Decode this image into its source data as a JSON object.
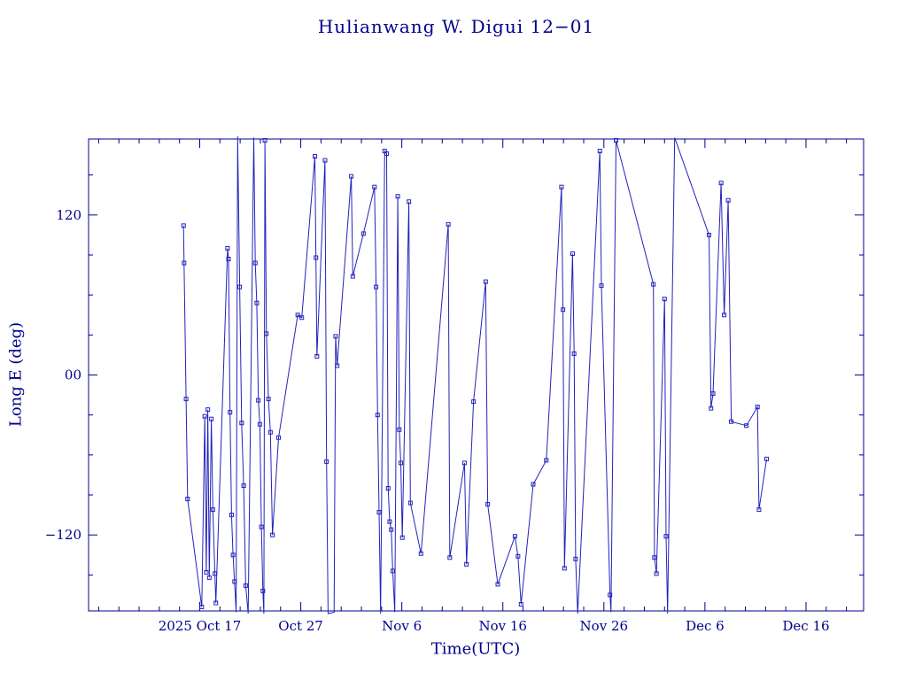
{
  "colors": {
    "background": "#ffffff",
    "text": "#00008B",
    "frame": "#00008B",
    "data": "#2222BB"
  },
  "chart_data": {
    "type": "line",
    "title": "Hulianwang W. Digui 12−01",
    "xlabel": "Time(UTC)",
    "ylabel": "Long E (deg)",
    "legend": "none",
    "grid": false,
    "marker": "open-square",
    "x_axis": {
      "unit": "days relative to 2025 Oct 17 00:00 UTC",
      "range": [
        -11,
        65.7
      ],
      "major_ticks": [
        {
          "day": 0,
          "label": "2025 Oct 17"
        },
        {
          "day": 10,
          "label": "Oct 27"
        },
        {
          "day": 20,
          "label": "Nov 6"
        },
        {
          "day": 30,
          "label": "Nov 16"
        },
        {
          "day": 40,
          "label": "Nov 26"
        },
        {
          "day": 50,
          "label": "Dec 6"
        },
        {
          "day": 60,
          "label": "Dec 16"
        }
      ],
      "minor_tick_step": 2
    },
    "y_axis": {
      "unit": "degrees East longitude",
      "range": [
        -177,
        177
      ],
      "major_ticks": [
        {
          "value": 120,
          "label": "120"
        },
        {
          "value": 0,
          "label": "00"
        },
        {
          "value": -120,
          "label": "−120"
        }
      ],
      "minor_tick_step": 30
    },
    "series": [
      {
        "name": "longitude-track",
        "points": [
          [
            -1.6,
            112
          ],
          [
            -1.55,
            84
          ],
          [
            -1.35,
            -18
          ],
          [
            -1.2,
            -93
          ],
          [
            0.2,
            -174
          ],
          [
            0.5,
            -31
          ],
          [
            0.65,
            -148
          ],
          [
            0.8,
            -26
          ],
          [
            0.95,
            -152
          ],
          [
            1.15,
            -33
          ],
          [
            1.3,
            -101
          ],
          [
            1.5,
            -149
          ],
          [
            1.6,
            -171
          ],
          [
            2.75,
            95
          ],
          [
            2.85,
            87
          ],
          [
            3.0,
            -28
          ],
          [
            3.15,
            -105
          ],
          [
            3.3,
            -135
          ],
          [
            3.45,
            -155
          ],
          [
            3.6,
            -178
          ],
          [
            3.75,
            179
          ],
          [
            3.95,
            66
          ],
          [
            4.15,
            -36
          ],
          [
            4.35,
            -83
          ],
          [
            4.55,
            -158
          ],
          [
            4.8,
            -179
          ],
          [
            5.35,
            178
          ],
          [
            5.5,
            84
          ],
          [
            5.65,
            54
          ],
          [
            5.8,
            -19
          ],
          [
            5.95,
            -37
          ],
          [
            6.1,
            -114
          ],
          [
            6.25,
            -162
          ],
          [
            6.35,
            -179
          ],
          [
            6.45,
            176
          ],
          [
            6.6,
            31
          ],
          [
            6.8,
            -18
          ],
          [
            7.0,
            -43
          ],
          [
            7.2,
            -120
          ],
          [
            7.8,
            -47
          ],
          [
            9.7,
            45
          ],
          [
            10.1,
            43
          ],
          [
            11.4,
            164
          ],
          [
            11.5,
            88
          ],
          [
            11.6,
            14
          ],
          [
            12.4,
            161
          ],
          [
            12.55,
            -65
          ],
          [
            12.7,
            -179
          ],
          [
            13.3,
            -178
          ],
          [
            13.45,
            29
          ],
          [
            13.6,
            7
          ],
          [
            15.0,
            149
          ],
          [
            15.15,
            74
          ],
          [
            16.2,
            106
          ],
          [
            17.3,
            141
          ],
          [
            17.45,
            66
          ],
          [
            17.6,
            -30
          ],
          [
            17.75,
            -103
          ],
          [
            17.9,
            -179
          ],
          [
            18.3,
            168
          ],
          [
            18.5,
            166
          ],
          [
            18.65,
            -85
          ],
          [
            18.8,
            -110
          ],
          [
            18.95,
            -116
          ],
          [
            19.1,
            -147
          ],
          [
            19.3,
            -178
          ],
          [
            19.6,
            134
          ],
          [
            19.75,
            -41
          ],
          [
            19.9,
            -66
          ],
          [
            20.05,
            -122
          ],
          [
            20.7,
            130
          ],
          [
            20.85,
            -96
          ],
          [
            21.9,
            -134
          ],
          [
            24.6,
            113
          ],
          [
            24.75,
            -137
          ],
          [
            26.2,
            -66
          ],
          [
            26.4,
            -142
          ],
          [
            27.1,
            -20
          ],
          [
            28.3,
            70
          ],
          [
            28.5,
            -97
          ],
          [
            29.5,
            -157
          ],
          [
            31.2,
            -121
          ],
          [
            31.5,
            -136
          ],
          [
            31.8,
            -172
          ],
          [
            33.0,
            -82
          ],
          [
            34.3,
            -64
          ],
          [
            35.8,
            141
          ],
          [
            35.95,
            49
          ],
          [
            36.1,
            -145
          ],
          [
            36.9,
            91
          ],
          [
            37.05,
            16
          ],
          [
            37.2,
            -138
          ],
          [
            37.4,
            -179
          ],
          [
            39.6,
            168
          ],
          [
            39.75,
            67
          ],
          [
            40.6,
            -165
          ],
          [
            40.7,
            -178
          ],
          [
            41.2,
            176
          ],
          [
            44.9,
            68
          ],
          [
            45.0,
            -137
          ],
          [
            45.2,
            -149
          ],
          [
            46.0,
            57
          ],
          [
            46.15,
            -121
          ],
          [
            46.3,
            -179
          ],
          [
            47.0,
            178
          ],
          [
            50.4,
            105
          ],
          [
            50.6,
            -25
          ],
          [
            50.8,
            -14
          ],
          [
            51.6,
            144
          ],
          [
            51.9,
            45
          ],
          [
            52.3,
            131
          ],
          [
            52.6,
            -35
          ],
          [
            54.1,
            -38
          ],
          [
            55.2,
            -24
          ],
          [
            55.35,
            -101
          ],
          [
            56.1,
            -63
          ]
        ]
      }
    ]
  }
}
